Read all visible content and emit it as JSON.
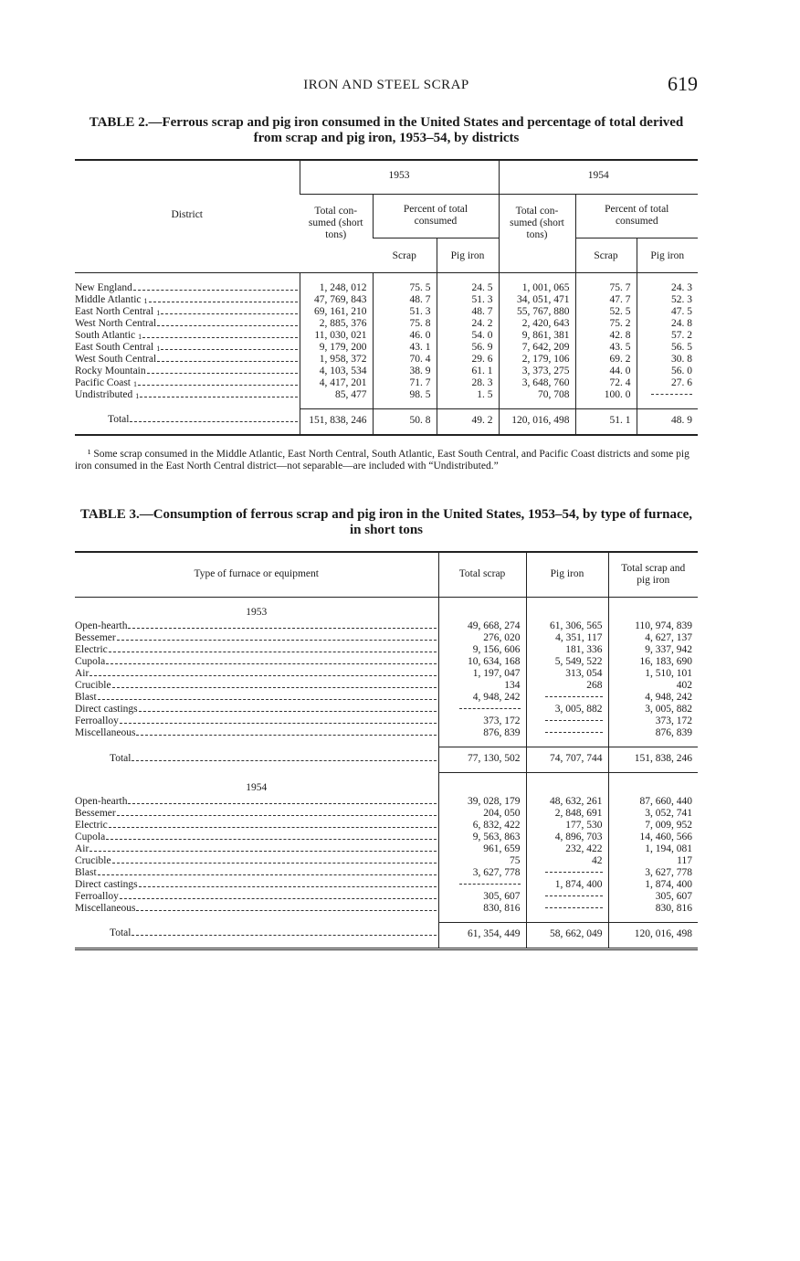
{
  "header": {
    "running_title": "IRON AND STEEL SCRAP",
    "page_number": "619"
  },
  "table2": {
    "title": "TABLE 2.—Ferrous scrap and pig iron consumed in the United States and percentage of total derived from scrap and pig iron, 1953–54, by districts",
    "col_district": "District",
    "year_1953": "1953",
    "year_1954": "1954",
    "total_consumed": "Total con- sumed (short tons)",
    "percent_of_total": "Percent of total consumed",
    "scrap": "Scrap",
    "pig_iron": "Pig iron",
    "rows": [
      {
        "district": "New England",
        "sup": "",
        "t53": "1, 248, 012",
        "s53": "75. 5",
        "p53": "24. 5",
        "t54": "1, 001, 065",
        "s54": "75. 7",
        "p54": "24. 3"
      },
      {
        "district": "Middle Atlantic",
        "sup": "1",
        "t53": "47, 769, 843",
        "s53": "48. 7",
        "p53": "51. 3",
        "t54": "34, 051, 471",
        "s54": "47. 7",
        "p54": "52. 3"
      },
      {
        "district": "East North Central",
        "sup": "1",
        "t53": "69, 161, 210",
        "s53": "51. 3",
        "p53": "48. 7",
        "t54": "55, 767, 880",
        "s54": "52. 5",
        "p54": "47. 5"
      },
      {
        "district": "West North Central",
        "sup": "",
        "t53": "2, 885, 376",
        "s53": "75. 8",
        "p53": "24. 2",
        "t54": "2, 420, 643",
        "s54": "75. 2",
        "p54": "24. 8"
      },
      {
        "district": "South Atlantic",
        "sup": "1",
        "t53": "11, 030, 021",
        "s53": "46. 0",
        "p53": "54. 0",
        "t54": "9, 861, 381",
        "s54": "42. 8",
        "p54": "57. 2"
      },
      {
        "district": "East South Central",
        "sup": "1",
        "t53": "9, 179, 200",
        "s53": "43. 1",
        "p53": "56. 9",
        "t54": "7, 642, 209",
        "s54": "43. 5",
        "p54": "56. 5"
      },
      {
        "district": "West South Central",
        "sup": "",
        "t53": "1, 958, 372",
        "s53": "70. 4",
        "p53": "29. 6",
        "t54": "2, 179, 106",
        "s54": "69. 2",
        "p54": "30. 8"
      },
      {
        "district": "Rocky Mountain",
        "sup": "",
        "t53": "4, 103, 534",
        "s53": "38. 9",
        "p53": "61. 1",
        "t54": "3, 373, 275",
        "s54": "44. 0",
        "p54": "56. 0"
      },
      {
        "district": "Pacific Coast",
        "sup": "1",
        "t53": "4, 417, 201",
        "s53": "71. 7",
        "p53": "28. 3",
        "t54": "3, 648, 760",
        "s54": "72. 4",
        "p54": "27. 6"
      },
      {
        "district": "Undistributed",
        "sup": "1",
        "t53": "85, 477",
        "s53": "98. 5",
        "p53": "1. 5",
        "t54": "70, 708",
        "s54": "100. 0",
        "p54": ""
      }
    ],
    "total": {
      "label": "Total",
      "t53": "151, 838, 246",
      "s53": "50. 8",
      "p53": "49. 2",
      "t54": "120, 016, 498",
      "s54": "51. 1",
      "p54": "48. 9"
    },
    "footnote": "¹ Some scrap consumed in the Middle Atlantic, East North Central, South Atlantic, East South Central, and Pacific Coast districts and some pig iron consumed in the East North Central district—not separable—are included with “Undistributed.”"
  },
  "table3": {
    "title": "TABLE 3.—Consumption of ferrous scrap and pig iron in the United States, 1953–54, by type of furnace, in short tons",
    "col_type": "Type of furnace or equipment",
    "col_scrap": "Total scrap",
    "col_pig": "Pig iron",
    "col_both": "Total scrap and pig iron",
    "sections": [
      {
        "year": "1953",
        "rows": [
          {
            "type": "Open-hearth",
            "scrap": "49, 668, 274",
            "pig": "61, 306, 565",
            "both": "110, 974, 839"
          },
          {
            "type": "Bessemer",
            "scrap": "276, 020",
            "pig": "4, 351, 117",
            "both": "4, 627, 137"
          },
          {
            "type": "Electric",
            "scrap": "9, 156, 606",
            "pig": "181, 336",
            "both": "9, 337, 942"
          },
          {
            "type": "Cupola",
            "scrap": "10, 634, 168",
            "pig": "5, 549, 522",
            "both": "16, 183, 690"
          },
          {
            "type": "Air",
            "scrap": "1, 197, 047",
            "pig": "313, 054",
            "both": "1, 510, 101"
          },
          {
            "type": "Crucible",
            "scrap": "134",
            "pig": "268",
            "both": "402"
          },
          {
            "type": "Blast",
            "scrap": "4, 948, 242",
            "pig": "",
            "both": "4, 948, 242"
          },
          {
            "type": "Direct castings",
            "scrap": "",
            "pig": "3, 005, 882",
            "both": "3, 005, 882"
          },
          {
            "type": "Ferroalloy",
            "scrap": "373, 172",
            "pig": "",
            "both": "373, 172"
          },
          {
            "type": "Miscellaneous",
            "scrap": "876, 839",
            "pig": "",
            "both": "876, 839"
          }
        ],
        "total": {
          "label": "Total",
          "scrap": "77, 130, 502",
          "pig": "74, 707, 744",
          "both": "151, 838, 246"
        }
      },
      {
        "year": "1954",
        "rows": [
          {
            "type": "Open-hearth",
            "scrap": "39, 028, 179",
            "pig": "48, 632, 261",
            "both": "87, 660, 440"
          },
          {
            "type": "Bessemer",
            "scrap": "204, 050",
            "pig": "2, 848, 691",
            "both": "3, 052, 741"
          },
          {
            "type": "Electric",
            "scrap": "6, 832, 422",
            "pig": "177, 530",
            "both": "7, 009, 952"
          },
          {
            "type": "Cupola",
            "scrap": "9, 563, 863",
            "pig": "4, 896, 703",
            "both": "14, 460, 566"
          },
          {
            "type": "Air",
            "scrap": "961, 659",
            "pig": "232, 422",
            "both": "1, 194, 081"
          },
          {
            "type": "Crucible",
            "scrap": "75",
            "pig": "42",
            "both": "117"
          },
          {
            "type": "Blast",
            "scrap": "3, 627, 778",
            "pig": "",
            "both": "3, 627, 778"
          },
          {
            "type": "Direct castings",
            "scrap": "",
            "pig": "1, 874, 400",
            "both": "1, 874, 400"
          },
          {
            "type": "Ferroalloy",
            "scrap": "305, 607",
            "pig": "",
            "both": "305, 607"
          },
          {
            "type": "Miscellaneous",
            "scrap": "830, 816",
            "pig": "",
            "both": "830, 816"
          }
        ],
        "total": {
          "label": "Total",
          "scrap": "61, 354, 449",
          "pig": "58, 662, 049",
          "both": "120, 016, 498"
        }
      }
    ]
  }
}
